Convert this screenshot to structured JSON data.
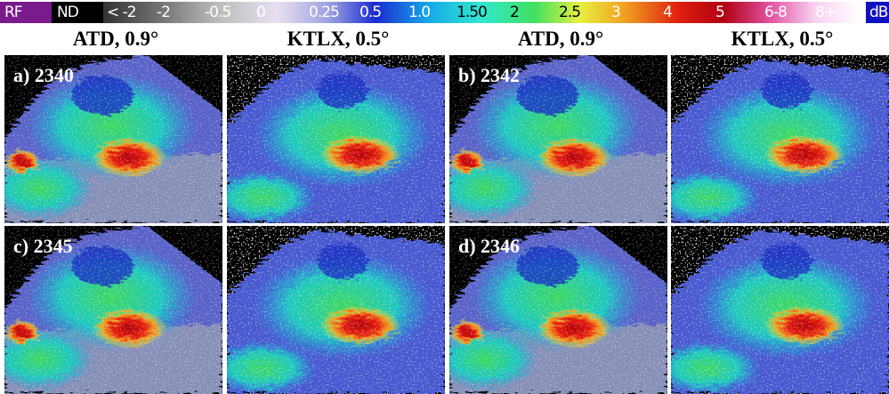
{
  "colorbar": {
    "labels": [
      "RF",
      "ND",
      "< -2",
      "-2",
      "-0.5",
      "0",
      "0.25",
      "0.5",
      "1.0",
      "1.50",
      "2",
      "2.5",
      "3",
      "4",
      "5",
      "6-8",
      "8+"
    ],
    "unit": "dB"
  },
  "columns": [
    "ATD, 0.9°",
    "KTLX, 0.5°",
    "ATD, 0.9°",
    "KTLX, 0.5°"
  ],
  "panels": [
    "a) 2340",
    "b) 2342",
    "c) 2345",
    "d) 2346"
  ]
}
